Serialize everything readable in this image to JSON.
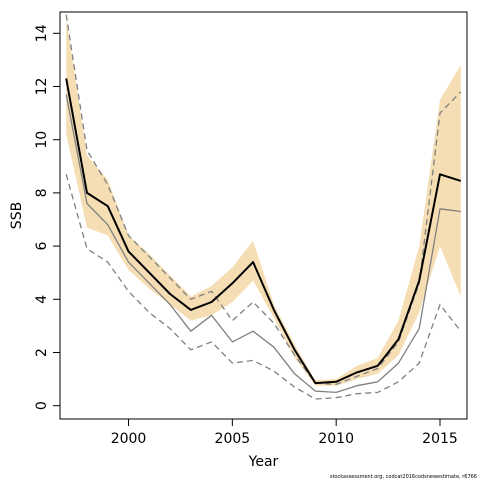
{
  "chart_data": {
    "type": "line",
    "xlabel": "Year",
    "ylabel": "SSB",
    "xlim": [
      1996.7,
      2016.3
    ],
    "ylim": [
      -0.5,
      14.8
    ],
    "x_ticks": [
      2000,
      2005,
      2010,
      2015
    ],
    "y_ticks": [
      0,
      2,
      4,
      6,
      8,
      10,
      12,
      14
    ],
    "grid": false,
    "legend": "none",
    "footnote": "stockassessment.org, codcat2016codsnewestimate, r6766",
    "x": [
      1997,
      1998,
      1999,
      2000,
      2001,
      2002,
      2003,
      2004,
      2005,
      2006,
      2007,
      2008,
      2009,
      2010,
      2011,
      2012,
      2013,
      2014,
      2015,
      2016
    ],
    "confidence_band": {
      "color": "#f5deb3",
      "lower": [
        10.2,
        6.7,
        6.4,
        5.1,
        4.4,
        3.8,
        3.2,
        3.4,
        3.9,
        4.7,
        3.3,
        1.8,
        0.75,
        0.75,
        1.0,
        1.2,
        1.9,
        3.5,
        6.0,
        4.1
      ],
      "upper": [
        14.6,
        9.4,
        8.5,
        6.4,
        5.7,
        4.9,
        4.1,
        4.5,
        5.2,
        6.2,
        3.8,
        2.3,
        0.95,
        1.0,
        1.5,
        1.8,
        3.2,
        6.0,
        11.5,
        12.8
      ]
    },
    "series": [
      {
        "color": "#000000",
        "style": "solid",
        "width": 2,
        "values": [
          12.3,
          8.0,
          7.5,
          5.8,
          5.0,
          4.2,
          3.6,
          3.9,
          4.6,
          5.4,
          3.6,
          2.1,
          0.85,
          0.9,
          1.25,
          1.5,
          2.5,
          4.7,
          8.7,
          8.45
        ]
      },
      {
        "color": "#808080",
        "style": "solid",
        "width": 1.3,
        "values": [
          11.7,
          7.6,
          6.8,
          5.4,
          4.6,
          3.8,
          2.8,
          3.4,
          2.4,
          2.8,
          2.2,
          1.2,
          0.55,
          0.5,
          0.75,
          0.9,
          1.6,
          2.9,
          7.4,
          7.3
        ]
      },
      {
        "color": "#808080",
        "style": "dashed",
        "width": 1.3,
        "values": [
          14.7,
          9.6,
          8.3,
          6.4,
          5.6,
          4.8,
          4.0,
          4.3,
          3.2,
          3.9,
          3.1,
          1.9,
          0.85,
          0.8,
          1.1,
          1.4,
          2.4,
          4.6,
          11.0,
          11.8
        ]
      },
      {
        "color": "#808080",
        "style": "dashed",
        "width": 1.3,
        "values": [
          8.7,
          5.9,
          5.4,
          4.3,
          3.5,
          2.9,
          2.1,
          2.4,
          1.6,
          1.7,
          1.3,
          0.7,
          0.25,
          0.3,
          0.45,
          0.5,
          0.9,
          1.6,
          3.8,
          2.8
        ]
      }
    ]
  }
}
